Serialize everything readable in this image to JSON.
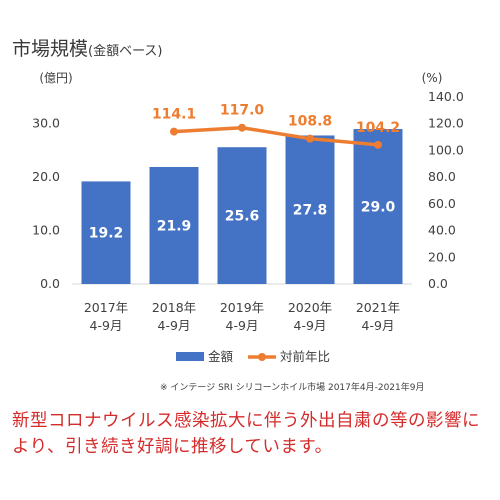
{
  "title": {
    "main": "市場規模",
    "sub": "(金額ベース)"
  },
  "source": "※ インテージ SRI シリコーンホイル市場 2017年4月-2021年9月",
  "note": "新型コロナウイルス感染拡大に伴う外出自粛の等の影響により、引き続き好調に推移しています。",
  "colors": {
    "bar": "#4472c4",
    "line": "#ed7d31",
    "bar_label": "#ffffff",
    "line_label": "#ed7d31",
    "grid": "#d9d9d9",
    "text": "#404040"
  },
  "chart_data": {
    "type": "bar+line",
    "categories": [
      [
        "2017年",
        "4-9月"
      ],
      [
        "2018年",
        "4-9月"
      ],
      [
        "2019年",
        "4-9月"
      ],
      [
        "2020年",
        "4-9月"
      ],
      [
        "2021年",
        "4-9月"
      ]
    ],
    "series": [
      {
        "name": "金額",
        "type": "bar",
        "axis": "left",
        "values": [
          19.2,
          21.9,
          25.6,
          27.8,
          29.0
        ],
        "labels": [
          "19.2",
          "21.9",
          "25.6",
          "27.8",
          "29.0"
        ]
      },
      {
        "name": "対前年比",
        "type": "line",
        "axis": "right",
        "values": [
          null,
          114.1,
          117.0,
          108.8,
          104.2
        ],
        "labels": [
          "",
          "114.1",
          "117.0",
          "108.8",
          "104.2"
        ]
      }
    ],
    "y_left": {
      "label": "(億円)",
      "ylim": [
        0,
        35
      ],
      "ticks": [
        "0.0",
        "10.0",
        "20.0",
        "30.0"
      ],
      "tick_values": [
        0,
        10,
        20,
        30
      ]
    },
    "y_right": {
      "label": "(%)",
      "ylim": [
        0,
        140
      ],
      "ticks": [
        "0.0",
        "20.0",
        "40.0",
        "60.0",
        "80.0",
        "100.0",
        "120.0",
        "140.0"
      ],
      "tick_values": [
        0,
        20,
        40,
        60,
        80,
        100,
        120,
        140
      ]
    },
    "legend": {
      "position": "bottom",
      "items": [
        "金額",
        "対前年比"
      ]
    },
    "grid": false
  }
}
